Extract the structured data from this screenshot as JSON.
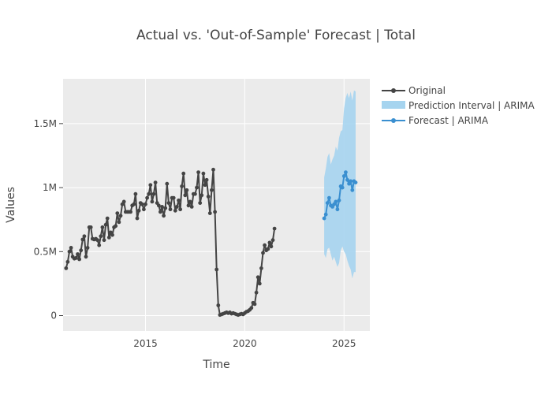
{
  "chart_data": {
    "type": "line",
    "title": "Actual vs. 'Out-of-Sample' Forecast | Total",
    "xlabel": "Time",
    "ylabel": "Values",
    "xlim": [
      2010.85,
      2026.3
    ],
    "ylim": [
      -120000,
      1850000
    ],
    "x_ticks": [
      2015,
      2020,
      2025
    ],
    "x_tick_labels": [
      "2015",
      "2020",
      "2025"
    ],
    "y_ticks": [
      0,
      500000,
      1000000,
      1500000
    ],
    "y_tick_labels": [
      "0",
      "0.5M",
      "1M",
      "1.5M"
    ],
    "grid": true,
    "legend_position": "top-right, outside plot",
    "colors": {
      "original": "#444444",
      "forecast": "#3a8fd0",
      "interval": "#a6d4ef",
      "plot_bg": "#ebebeb",
      "grid": "#ffffff"
    },
    "series": [
      {
        "name": "Original",
        "x_start": "2011-01",
        "frequency": "monthly",
        "values": [
          370000,
          420000,
          500000,
          530000,
          460000,
          445000,
          450000,
          480000,
          440000,
          510000,
          595000,
          620000,
          460000,
          530000,
          690000,
          690000,
          600000,
          595000,
          600000,
          590000,
          550000,
          620000,
          690000,
          590000,
          710000,
          760000,
          610000,
          650000,
          630000,
          690000,
          700000,
          800000,
          730000,
          780000,
          870000,
          890000,
          810000,
          810000,
          810000,
          810000,
          860000,
          870000,
          950000,
          760000,
          820000,
          880000,
          870000,
          830000,
          870000,
          920000,
          950000,
          1020000,
          890000,
          950000,
          1040000,
          880000,
          860000,
          810000,
          850000,
          780000,
          840000,
          1030000,
          880000,
          830000,
          920000,
          920000,
          820000,
          850000,
          900000,
          830000,
          1010000,
          1110000,
          940000,
          980000,
          860000,
          890000,
          850000,
          950000,
          950000,
          1000000,
          1120000,
          880000,
          940000,
          1110000,
          1020000,
          1060000,
          930000,
          800000,
          980000,
          1140000,
          810000,
          360000,
          80000,
          5000,
          10000,
          15000,
          20000,
          25000,
          20000,
          25000,
          15000,
          20000,
          15000,
          10000,
          5000,
          10000,
          15000,
          10000,
          20000,
          30000,
          35000,
          45000,
          60000,
          100000,
          90000,
          180000,
          300000,
          250000,
          370000,
          490000,
          550000,
          510000,
          520000,
          570000,
          540000,
          590000,
          680000
        ]
      },
      {
        "name": "Forecast | ARIMA",
        "x_start": "2024-01",
        "frequency": "monthly",
        "values": [
          760000,
          790000,
          880000,
          920000,
          860000,
          850000,
          870000,
          890000,
          830000,
          900000,
          1010000,
          1000000,
          1090000,
          1120000,
          1060000,
          1030000,
          1050000,
          980000,
          1050000,
          1040000
        ]
      },
      {
        "name": "Prediction Interval | ARIMA",
        "x_start": "2024-01",
        "frequency": "monthly",
        "upper": [
          1080000,
          1150000,
          1240000,
          1270000,
          1180000,
          1220000,
          1250000,
          1320000,
          1290000,
          1390000,
          1440000,
          1450000,
          1620000,
          1700000,
          1740000,
          1700000,
          1750000,
          1680000,
          1760000,
          1750000
        ],
        "lower": [
          480000,
          450000,
          520000,
          530000,
          480000,
          430000,
          460000,
          420000,
          380000,
          410000,
          510000,
          540000,
          500000,
          480000,
          430000,
          390000,
          360000,
          290000,
          340000,
          340000
        ]
      }
    ]
  }
}
